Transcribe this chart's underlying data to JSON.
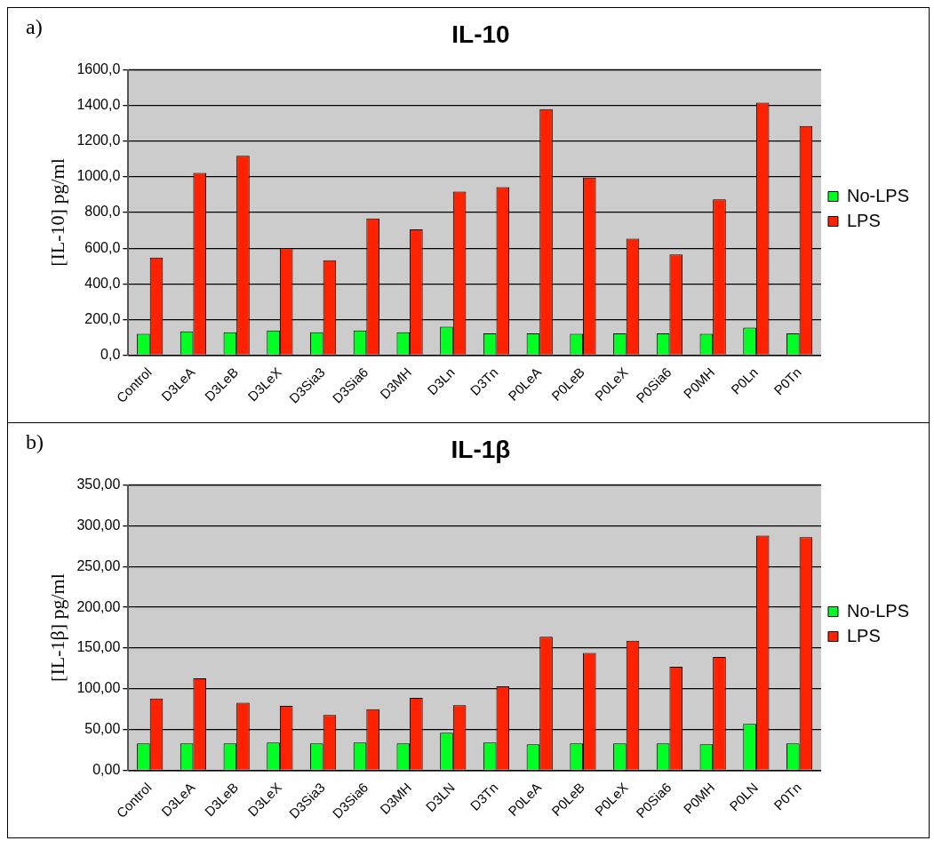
{
  "chart_data": [
    {
      "type": "bar",
      "title": "IL-10",
      "ylabel": "[IL-10] pg/ml",
      "annotations": [
        "a)"
      ],
      "categories": [
        "Control",
        "D3LeA",
        "D3LeB",
        "D3LeX",
        "D3Sia3",
        "D3Sia6",
        "D3MH",
        "D3Ln",
        "D3Tn",
        "P0LeA",
        "P0LeB",
        "P0LeX",
        "P0Sia6",
        "P0MH",
        "P0Ln",
        "P0Tn"
      ],
      "series": [
        {
          "name": "No-LPS",
          "color": "#00ff22",
          "values": [
            120,
            133,
            128,
            138,
            128,
            138,
            128,
            160,
            122,
            122,
            120,
            122,
            122,
            120,
            155,
            122
          ]
        },
        {
          "name": "LPS",
          "color": "#ff2200",
          "values": [
            547,
            1022,
            1118,
            600,
            532,
            767,
            705,
            918,
            942,
            1380,
            996,
            653,
            564,
            874,
            1416,
            1285
          ]
        }
      ],
      "ylim": [
        0,
        1600
      ],
      "yticks": [
        {
          "value": 0,
          "label": "0,0"
        },
        {
          "value": 200,
          "label": "200,0"
        },
        {
          "value": 400,
          "label": "400,0"
        },
        {
          "value": 600,
          "label": "600,0"
        },
        {
          "value": 800,
          "label": "800,0"
        },
        {
          "value": 1000,
          "label": "1000,0"
        },
        {
          "value": 1200,
          "label": "1200,0"
        },
        {
          "value": 1400,
          "label": "1400,0"
        },
        {
          "value": 1600,
          "label": "1600,0"
        }
      ],
      "grid": "y",
      "legend": "right"
    },
    {
      "type": "bar",
      "title": "IL-1β",
      "ylabel": "[IL-1β] pg/ml",
      "annotations": [
        "b)"
      ],
      "categories": [
        "Control",
        "D3LeA",
        "D3LeB",
        "D3LeX",
        "D3Sia3",
        "D3Sia6",
        "D3MH",
        "D3LN",
        "D3Tn",
        "P0LeA",
        "P0LeB",
        "P0LeX",
        "P0Sia6",
        "P0MH",
        "P0LN",
        "P0Tn"
      ],
      "series": [
        {
          "name": "No-LPS",
          "color": "#00ff22",
          "values": [
            33,
            33,
            33,
            34,
            33,
            34,
            33,
            46,
            34,
            32,
            33,
            33,
            33,
            32,
            57,
            33
          ]
        },
        {
          "name": "LPS",
          "color": "#ff2200",
          "values": [
            88,
            113,
            83,
            79,
            68,
            75,
            89,
            80,
            103,
            164,
            144,
            159,
            127,
            139,
            288,
            286
          ]
        }
      ],
      "ylim": [
        0,
        350
      ],
      "yticks": [
        {
          "value": 0,
          "label": "0,00"
        },
        {
          "value": 50,
          "label": "50,00"
        },
        {
          "value": 100,
          "label": "100,00"
        },
        {
          "value": 150,
          "label": "150,00"
        },
        {
          "value": 200,
          "label": "200,00"
        },
        {
          "value": 250,
          "label": "250,00"
        },
        {
          "value": 300,
          "label": "300,00"
        },
        {
          "value": 350,
          "label": "350,00"
        }
      ],
      "grid": "y",
      "legend": "right"
    }
  ]
}
